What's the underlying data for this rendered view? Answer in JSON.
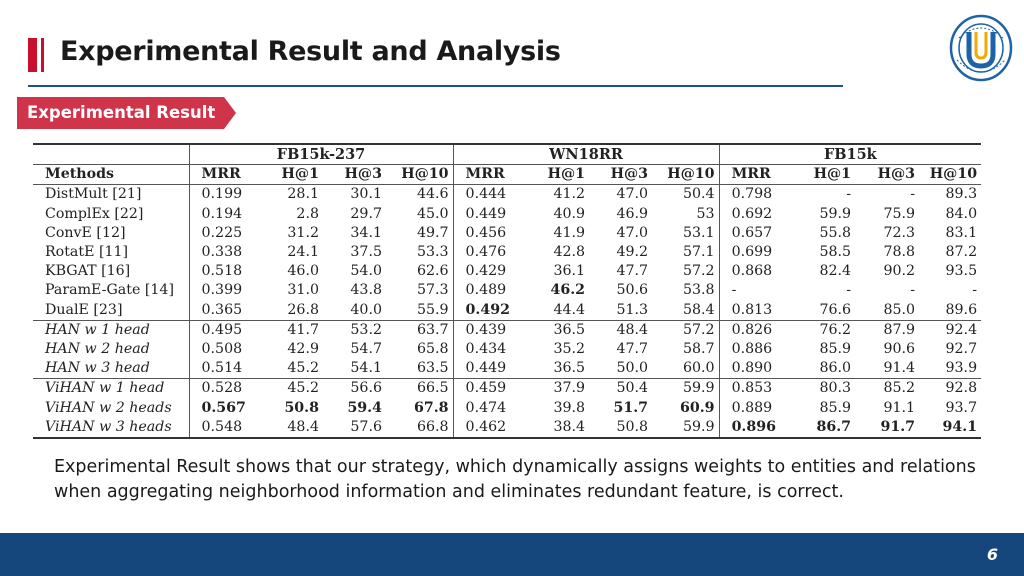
{
  "slide": {
    "title": "Experimental Result and Analysis",
    "tag": "Experimental Result",
    "caption": "Experimental Result shows that our strategy, which dynamically assigns weights to entities and relations when aggregating neighborhood information and eliminates redundant feature, is correct.",
    "page_number": "6",
    "logo_text": "SHANGHAI UNIVERSITY",
    "colors": {
      "accent_red": "#c8102e",
      "tag_red": "#d0344a",
      "footer_blue": "#15477d",
      "rule_blue": "#1f4e8c"
    }
  },
  "table": {
    "groups": [
      "FB15k-237",
      "WN18RR",
      "FB15k"
    ],
    "method_header": "Methods",
    "metrics": [
      "MRR",
      "H@1",
      "H@3",
      "H@10"
    ],
    "rows": [
      {
        "method": "DistMult [21]",
        "italic": false,
        "sep": false,
        "cells": [
          {
            "v": "0.199"
          },
          {
            "v": "28.1"
          },
          {
            "v": "30.1"
          },
          {
            "v": "44.6"
          },
          {
            "v": "0.444"
          },
          {
            "v": "41.2"
          },
          {
            "v": "47.0"
          },
          {
            "v": "50.4"
          },
          {
            "v": "0.798"
          },
          {
            "v": "-"
          },
          {
            "v": "-"
          },
          {
            "v": "89.3"
          }
        ]
      },
      {
        "method": "ComplEx [22]",
        "italic": false,
        "sep": false,
        "cells": [
          {
            "v": "0.194"
          },
          {
            "v": "2.8"
          },
          {
            "v": "29.7"
          },
          {
            "v": "45.0"
          },
          {
            "v": "0.449"
          },
          {
            "v": "40.9"
          },
          {
            "v": "46.9"
          },
          {
            "v": "53"
          },
          {
            "v": "0.692"
          },
          {
            "v": "59.9"
          },
          {
            "v": "75.9"
          },
          {
            "v": "84.0"
          }
        ]
      },
      {
        "method": "ConvE [12]",
        "italic": false,
        "sep": false,
        "cells": [
          {
            "v": "0.225"
          },
          {
            "v": "31.2"
          },
          {
            "v": "34.1"
          },
          {
            "v": "49.7"
          },
          {
            "v": "0.456"
          },
          {
            "v": "41.9"
          },
          {
            "v": "47.0"
          },
          {
            "v": "53.1"
          },
          {
            "v": "0.657"
          },
          {
            "v": "55.8"
          },
          {
            "v": "72.3"
          },
          {
            "v": "83.1"
          }
        ]
      },
      {
        "method": "RotatE [11]",
        "italic": false,
        "sep": false,
        "cells": [
          {
            "v": "0.338"
          },
          {
            "v": "24.1"
          },
          {
            "v": "37.5"
          },
          {
            "v": "53.3"
          },
          {
            "v": "0.476"
          },
          {
            "v": "42.8"
          },
          {
            "v": "49.2"
          },
          {
            "v": "57.1"
          },
          {
            "v": "0.699"
          },
          {
            "v": "58.5"
          },
          {
            "v": "78.8"
          },
          {
            "v": "87.2"
          }
        ]
      },
      {
        "method": "KBGAT [16]",
        "italic": false,
        "sep": false,
        "cells": [
          {
            "v": "0.518"
          },
          {
            "v": "46.0"
          },
          {
            "v": "54.0"
          },
          {
            "v": "62.6"
          },
          {
            "v": "0.429"
          },
          {
            "v": "36.1"
          },
          {
            "v": "47.7"
          },
          {
            "v": "57.2"
          },
          {
            "v": "0.868"
          },
          {
            "v": "82.4"
          },
          {
            "v": "90.2"
          },
          {
            "v": "93.5"
          }
        ]
      },
      {
        "method": "ParamE-Gate [14]",
        "italic": false,
        "sep": false,
        "cells": [
          {
            "v": "0.399"
          },
          {
            "v": "31.0"
          },
          {
            "v": "43.8"
          },
          {
            "v": "57.3"
          },
          {
            "v": "0.489"
          },
          {
            "v": "46.2",
            "b": true
          },
          {
            "v": "50.6"
          },
          {
            "v": "53.8"
          },
          {
            "v": "-"
          },
          {
            "v": "-"
          },
          {
            "v": "-"
          },
          {
            "v": "-"
          }
        ]
      },
      {
        "method": "DualE [23]",
        "italic": false,
        "sep": false,
        "cells": [
          {
            "v": "0.365"
          },
          {
            "v": "26.8"
          },
          {
            "v": "40.0"
          },
          {
            "v": "55.9"
          },
          {
            "v": "0.492",
            "b": true
          },
          {
            "v": "44.4"
          },
          {
            "v": "51.3"
          },
          {
            "v": "58.4"
          },
          {
            "v": "0.813"
          },
          {
            "v": "76.6"
          },
          {
            "v": "85.0"
          },
          {
            "v": "89.6"
          }
        ]
      },
      {
        "method": "HAN w 1 head",
        "italic": true,
        "sep": true,
        "cells": [
          {
            "v": "0.495"
          },
          {
            "v": "41.7"
          },
          {
            "v": "53.2"
          },
          {
            "v": "63.7"
          },
          {
            "v": "0.439"
          },
          {
            "v": "36.5"
          },
          {
            "v": "48.4"
          },
          {
            "v": "57.2"
          },
          {
            "v": "0.826"
          },
          {
            "v": "76.2"
          },
          {
            "v": "87.9"
          },
          {
            "v": "92.4"
          }
        ]
      },
      {
        "method": "HAN w 2 head",
        "italic": true,
        "sep": false,
        "cells": [
          {
            "v": "0.508"
          },
          {
            "v": "42.9"
          },
          {
            "v": "54.7"
          },
          {
            "v": "65.8"
          },
          {
            "v": "0.434"
          },
          {
            "v": "35.2"
          },
          {
            "v": "47.7"
          },
          {
            "v": "58.7"
          },
          {
            "v": "0.886"
          },
          {
            "v": "85.9"
          },
          {
            "v": "90.6"
          },
          {
            "v": "92.7"
          }
        ]
      },
      {
        "method": "HAN w 3 head",
        "italic": true,
        "sep": false,
        "cells": [
          {
            "v": "0.514"
          },
          {
            "v": "45.2"
          },
          {
            "v": "54.1"
          },
          {
            "v": "63.5"
          },
          {
            "v": "0.449"
          },
          {
            "v": "36.5"
          },
          {
            "v": "50.0"
          },
          {
            "v": "60.0"
          },
          {
            "v": "0.890"
          },
          {
            "v": "86.0"
          },
          {
            "v": "91.4"
          },
          {
            "v": "93.9"
          }
        ]
      },
      {
        "method": "ViHAN w 1 head",
        "italic": true,
        "sep": true,
        "cells": [
          {
            "v": "0.528"
          },
          {
            "v": "45.2"
          },
          {
            "v": "56.6"
          },
          {
            "v": "66.5"
          },
          {
            "v": "0.459"
          },
          {
            "v": "37.9"
          },
          {
            "v": "50.4"
          },
          {
            "v": "59.9"
          },
          {
            "v": "0.853"
          },
          {
            "v": "80.3"
          },
          {
            "v": "85.2"
          },
          {
            "v": "92.8"
          }
        ]
      },
      {
        "method": "ViHAN w 2 heads",
        "italic": true,
        "sep": false,
        "cells": [
          {
            "v": "0.567",
            "b": true
          },
          {
            "v": "50.8",
            "b": true
          },
          {
            "v": "59.4",
            "b": true
          },
          {
            "v": "67.8",
            "b": true
          },
          {
            "v": "0.474"
          },
          {
            "v": "39.8"
          },
          {
            "v": "51.7",
            "b": true
          },
          {
            "v": "60.9",
            "b": true
          },
          {
            "v": "0.889"
          },
          {
            "v": "85.9"
          },
          {
            "v": "91.1"
          },
          {
            "v": "93.7"
          }
        ]
      },
      {
        "method": "ViHAN w 3 heads",
        "italic": true,
        "sep": false,
        "cells": [
          {
            "v": "0.548"
          },
          {
            "v": "48.4"
          },
          {
            "v": "57.6"
          },
          {
            "v": "66.8"
          },
          {
            "v": "0.462"
          },
          {
            "v": "38.4"
          },
          {
            "v": "50.8"
          },
          {
            "v": "59.9"
          },
          {
            "v": "0.896",
            "b": true
          },
          {
            "v": "86.7",
            "b": true
          },
          {
            "v": "91.7",
            "b": true
          },
          {
            "v": "94.1",
            "b": true
          }
        ]
      }
    ]
  }
}
